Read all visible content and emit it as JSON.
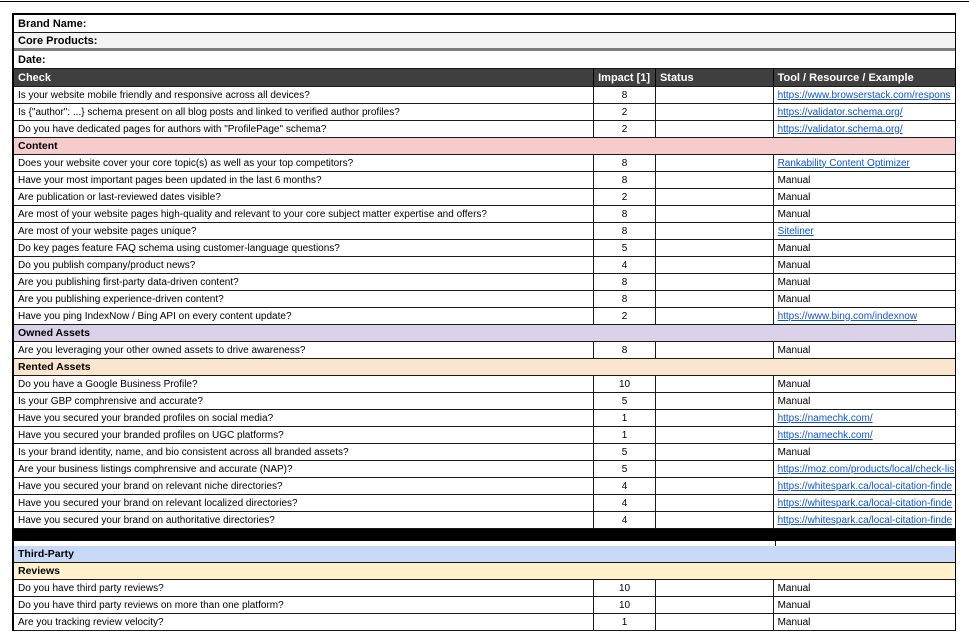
{
  "colors": {
    "header_bg": "#3f3f3f",
    "header_text": "#ffffff",
    "field_alt_bg": "#f3f3f3",
    "link": "#1155cc",
    "divider": "#000000",
    "section_content": "#f4cccc",
    "section_owned_assets": "#d9d2e9",
    "section_rented_assets": "#fce5cd",
    "section_third_party": "#c9daf8",
    "section_reviews": "#fff2cc"
  },
  "top_fields": [
    {
      "label": "Brand Name:"
    },
    {
      "label": "Core Products:"
    },
    {
      "label": "Date:"
    }
  ],
  "columns": {
    "check": "Check",
    "impact": "Impact [1]",
    "status": "Status",
    "tool": "Tool / Resource / Example"
  },
  "rows": [
    {
      "type": "item",
      "check": "Is your website mobile friendly and responsive across all devices?",
      "impact": "8",
      "status": "",
      "tool": "https://www.browserstack.com/respons",
      "link": true
    },
    {
      "type": "item",
      "check": "Is {\"author\": ...} schema present on all blog posts and linked to verified author profiles?",
      "impact": "2",
      "status": "",
      "tool": "https://validator.schema.org/",
      "link": true
    },
    {
      "type": "item",
      "check": "Do you have dedicated pages for authors with \"ProfilePage\" schema?",
      "impact": "2",
      "status": "",
      "tool": "https://validator.schema.org/",
      "link": true
    },
    {
      "type": "section",
      "label": "Content",
      "bg": "#f4cccc"
    },
    {
      "type": "item",
      "check": "Does your website cover your core topic(s) as well as your top competitors?",
      "impact": "8",
      "status": "",
      "tool": "Rankability Content Optimizer",
      "link": true
    },
    {
      "type": "item",
      "check": "Have your most important pages been updated in the last 6 months?",
      "impact": "8",
      "status": "",
      "tool": "Manual",
      "link": false
    },
    {
      "type": "item",
      "check": "Are publication or last-reviewed dates visible?",
      "impact": "2",
      "status": "",
      "tool": "Manual",
      "link": false
    },
    {
      "type": "item",
      "check": "Are most of your website pages high-quality and relevant to your core subject matter expertise and offers?",
      "impact": "8",
      "status": "",
      "tool": "Manual",
      "link": false
    },
    {
      "type": "item",
      "check": "Are most of your website pages unique?",
      "impact": "8",
      "status": "",
      "tool": "Siteliner",
      "link": true
    },
    {
      "type": "item",
      "check": "Do key pages feature FAQ schema using customer-language questions?",
      "impact": "5",
      "status": "",
      "tool": "Manual",
      "link": false
    },
    {
      "type": "item",
      "check": "Do you publish company/product news?",
      "impact": "4",
      "status": "",
      "tool": "Manual",
      "link": false
    },
    {
      "type": "item",
      "check": "Are you publishing first-party data-driven content?",
      "impact": "8",
      "status": "",
      "tool": "Manual",
      "link": false
    },
    {
      "type": "item",
      "check": "Are you publishing experience-driven content?",
      "impact": "8",
      "status": "",
      "tool": "Manual",
      "link": false
    },
    {
      "type": "item",
      "check": "Have you ping IndexNow / Bing API on every content update?",
      "impact": "2",
      "status": "",
      "tool": "https://www.bing.com/indexnow",
      "link": true
    },
    {
      "type": "section",
      "label": "Owned Assets",
      "bg": "#d9d2e9"
    },
    {
      "type": "item",
      "check": "Are you leveraging your other owned assets to drive awareness?",
      "impact": "8",
      "status": "",
      "tool": "Manual",
      "link": false
    },
    {
      "type": "section",
      "label": "Rented Assets",
      "bg": "#fce5cd"
    },
    {
      "type": "item",
      "check": "Do you have a Google Business Profile?",
      "impact": "10",
      "status": "",
      "tool": "Manual",
      "link": false
    },
    {
      "type": "item",
      "check": "Is your GBP comphrensive and accurate?",
      "impact": "5",
      "status": "",
      "tool": "Manual",
      "link": false
    },
    {
      "type": "item",
      "check": "Have you secured your branded profiles on social media?",
      "impact": "1",
      "status": "",
      "tool": "https://namechk.com/",
      "link": true
    },
    {
      "type": "item",
      "check": "Have you secured your branded profiles on UGC platforms?",
      "impact": "1",
      "status": "",
      "tool": "https://namechk.com/",
      "link": true
    },
    {
      "type": "item",
      "check": "Is your brand identity, name, and bio consistent across all branded assets?",
      "impact": "5",
      "status": "",
      "tool": "Manual",
      "link": false
    },
    {
      "type": "item",
      "check": "Are your business listings comphrensive and accurate (NAP)?",
      "impact": "5",
      "status": "",
      "tool": "https://moz.com/products/local/check-lis",
      "link": true
    },
    {
      "type": "item",
      "check": "Have you secured your brand on relevant niche directories?",
      "impact": "4",
      "status": "",
      "tool": "https://whitespark.ca/local-citation-finde",
      "link": true
    },
    {
      "type": "item",
      "check": "Have you secured your brand on relevant localized directories?",
      "impact": "4",
      "status": "",
      "tool": "https://whitespark.ca/local-citation-finde",
      "link": true
    },
    {
      "type": "item",
      "check": "Have you secured your brand on authoritative directories?",
      "impact": "4",
      "status": "",
      "tool": "https://whitespark.ca/local-citation-finde",
      "link": true
    },
    {
      "type": "divider"
    },
    {
      "type": "gap"
    },
    {
      "type": "section",
      "label": "Third-Party",
      "bg": "#c9daf8"
    },
    {
      "type": "section",
      "label": "Reviews",
      "bg": "#fff2cc"
    },
    {
      "type": "item",
      "check": "Do you have third party reviews?",
      "impact": "10",
      "status": "",
      "tool": "Manual",
      "link": false
    },
    {
      "type": "item",
      "check": "Do you have third party reviews on more than one platform?",
      "impact": "10",
      "status": "",
      "tool": "Manual",
      "link": false
    },
    {
      "type": "item",
      "check": "Are you tracking review velocity?",
      "impact": "1",
      "status": "",
      "tool": "Manual",
      "link": false
    }
  ]
}
